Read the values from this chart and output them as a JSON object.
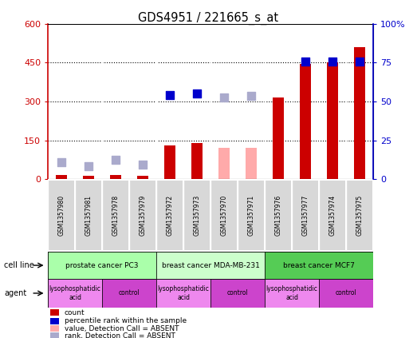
{
  "title": "GDS4951 / 221665_s_at",
  "samples": [
    "GSM1357980",
    "GSM1357981",
    "GSM1357978",
    "GSM1357979",
    "GSM1357972",
    "GSM1357973",
    "GSM1357970",
    "GSM1357971",
    "GSM1357976",
    "GSM1357977",
    "GSM1357974",
    "GSM1357975"
  ],
  "count_values": [
    15,
    12,
    15,
    12,
    130,
    140,
    null,
    null,
    315,
    445,
    450,
    510
  ],
  "count_absent": [
    null,
    null,
    null,
    null,
    null,
    null,
    120,
    120,
    null,
    null,
    null,
    null
  ],
  "rank_values": [
    null,
    null,
    null,
    null,
    325,
    330,
    null,
    null,
    null,
    455,
    455,
    455
  ],
  "rank_absent": [
    65,
    50,
    75,
    55,
    null,
    null,
    315,
    320,
    null,
    null,
    null,
    null
  ],
  "bar_color_present": "#cc0000",
  "bar_color_absent": "#ffaaaa",
  "dot_color_present": "#0000cc",
  "dot_color_absent": "#aaaacc",
  "ylim_left": [
    0,
    600
  ],
  "ylim_right": [
    0,
    100
  ],
  "yticks_left": [
    0,
    150,
    300,
    450,
    600
  ],
  "ytick_labels_left": [
    "0",
    "150",
    "300",
    "450",
    "600"
  ],
  "ytick_labels_right": [
    "0",
    "25",
    "50",
    "75",
    "100%"
  ],
  "cell_lines": [
    {
      "label": "prostate cancer PC3",
      "start": 0,
      "end": 4,
      "color": "#aaffaa"
    },
    {
      "label": "breast cancer MDA-MB-231",
      "start": 4,
      "end": 8,
      "color": "#ccffcc"
    },
    {
      "label": "breast cancer MCF7",
      "start": 8,
      "end": 12,
      "color": "#55cc55"
    }
  ],
  "agents": [
    {
      "label": "lysophosphatidic\nacid",
      "start": 0,
      "end": 2,
      "color": "#ee88ee"
    },
    {
      "label": "control",
      "start": 2,
      "end": 4,
      "color": "#cc44cc"
    },
    {
      "label": "lysophosphatidic\nacid",
      "start": 4,
      "end": 6,
      "color": "#ee88ee"
    },
    {
      "label": "control",
      "start": 6,
      "end": 8,
      "color": "#cc44cc"
    },
    {
      "label": "lysophosphatidic\nacid",
      "start": 8,
      "end": 10,
      "color": "#ee88ee"
    },
    {
      "label": "control",
      "start": 10,
      "end": 12,
      "color": "#cc44cc"
    }
  ],
  "legend_items": [
    {
      "label": "count",
      "color": "#cc0000"
    },
    {
      "label": "percentile rank within the sample",
      "color": "#0000cc"
    },
    {
      "label": "value, Detection Call = ABSENT",
      "color": "#ffaaaa"
    },
    {
      "label": "rank, Detection Call = ABSENT",
      "color": "#aaaacc"
    }
  ],
  "bar_width": 0.4,
  "dot_size": 45,
  "axis_left_color": "#cc0000",
  "axis_right_color": "#0000cc"
}
